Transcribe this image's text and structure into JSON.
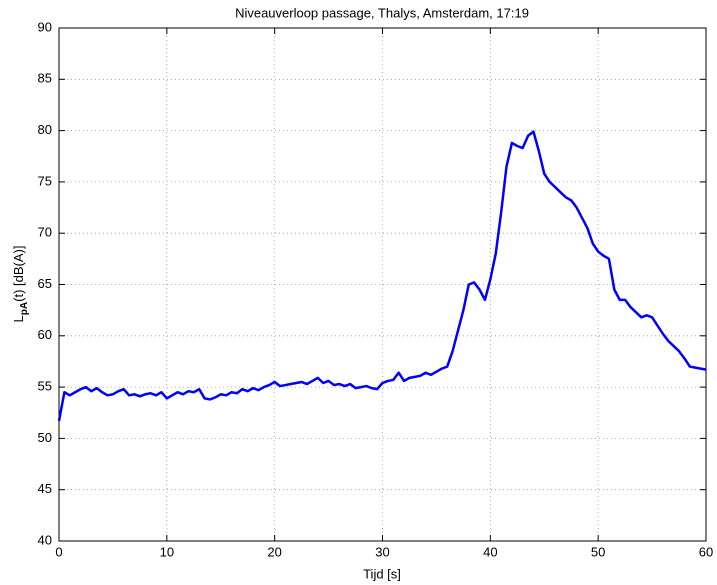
{
  "chart_data": {
    "type": "line",
    "title": "Niveauverloop passage, Thalys, Amsterdam, 17:19",
    "xlabel": "Tijd [s]",
    "ylabel": [
      "L",
      "pA",
      "(t) [dB(A)]"
    ],
    "xlim": [
      0,
      60
    ],
    "ylim": [
      40,
      90
    ],
    "xticks": [
      0,
      10,
      20,
      30,
      40,
      50,
      60
    ],
    "yticks": [
      40,
      45,
      50,
      55,
      60,
      65,
      70,
      75,
      80,
      85,
      90
    ],
    "grid": true,
    "x": [
      0,
      0.5,
      1,
      1.5,
      2,
      2.5,
      3,
      3.5,
      4,
      4.5,
      5,
      5.5,
      6,
      6.5,
      7,
      7.5,
      8,
      8.5,
      9,
      9.5,
      10,
      10.5,
      11,
      11.5,
      12,
      12.5,
      13,
      13.5,
      14,
      14.5,
      15,
      15.5,
      16,
      16.5,
      17,
      17.5,
      18,
      18.5,
      19,
      19.5,
      20,
      20.5,
      21,
      21.5,
      22,
      22.5,
      23,
      23.5,
      24,
      24.5,
      25,
      25.5,
      26,
      26.5,
      27,
      27.5,
      28,
      28.5,
      29,
      29.5,
      30,
      30.5,
      31,
      31.5,
      32,
      32.5,
      33,
      33.5,
      34,
      34.5,
      35,
      35.5,
      36,
      36.5,
      37,
      37.5,
      38,
      38.5,
      39,
      39.5,
      40,
      40.5,
      41,
      41.5,
      42,
      42.5,
      43,
      43.5,
      44,
      44.5,
      45,
      45.5,
      46,
      46.5,
      47,
      47.5,
      48,
      48.5,
      49,
      49.5,
      50,
      50.5,
      51,
      51.5,
      52,
      52.5,
      53,
      53.5,
      54,
      54.5,
      55,
      55.5,
      56,
      56.5,
      57,
      57.5,
      58,
      58.5,
      59,
      59.5,
      60
    ],
    "series": [
      {
        "name": "LpA",
        "color": "#0000ff",
        "values": [
          51.7,
          54.5,
          54.2,
          54.5,
          54.8,
          55,
          54.6,
          54.9,
          54.5,
          54.2,
          54.3,
          54.6,
          54.8,
          54.2,
          54.3,
          54.1,
          54.3,
          54.4,
          54.2,
          54.5,
          53.9,
          54.2,
          54.5,
          54.3,
          54.6,
          54.5,
          54.8,
          53.9,
          53.8,
          54,
          54.3,
          54.2,
          54.5,
          54.4,
          54.8,
          54.6,
          54.9,
          54.7,
          55,
          55.2,
          55.5,
          55.1,
          55.2,
          55.3,
          55.4,
          55.5,
          55.3,
          55.6,
          55.9,
          55.4,
          55.6,
          55.2,
          55.3,
          55.1,
          55.3,
          54.9,
          55,
          55.1,
          54.9,
          54.8,
          55.4,
          55.6,
          55.7,
          56.4,
          55.6,
          55.9,
          56,
          56.1,
          56.4,
          56.2,
          56.5,
          56.8,
          57,
          58.5,
          60.5,
          62.5,
          65,
          65.2,
          64.5,
          63.5,
          65.5,
          68,
          72,
          76.5,
          78.8,
          78.5,
          78.3,
          79.5,
          79.9,
          78,
          75.8,
          75,
          74.5,
          74,
          73.5,
          73.2,
          72.5,
          71.5,
          70.5,
          69,
          68.2,
          67.8,
          67.5,
          64.5,
          63.5,
          63.5,
          62.8,
          62.3,
          61.8,
          62,
          61.8,
          61,
          60.2,
          59.5,
          59,
          58.5,
          57.8,
          57,
          56.9,
          56.8,
          56.7
        ]
      }
    ]
  }
}
